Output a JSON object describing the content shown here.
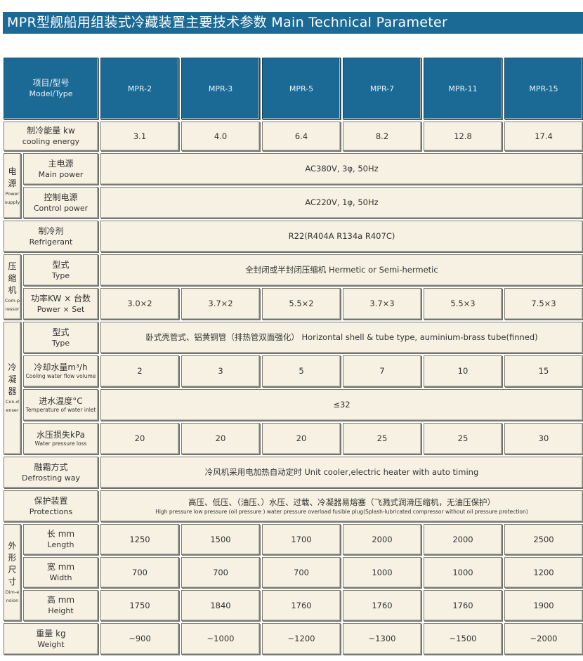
{
  "title": "MPR型舰船用组装式冷藏装置主要技术参数   Main Technical Parameter",
  "header": {
    "cn": "项目/型号",
    "en": "Model/Type",
    "models": [
      "MPR-2",
      "MPR-3",
      "MPR-5",
      "MPR-7",
      "MPR-11",
      "MPR-15"
    ]
  },
  "colors": {
    "header_blue": "#1b6a96",
    "cell_cream": "#f6f1e2"
  },
  "groups": [
    {
      "cn": "电源",
      "en": "Power supply"
    },
    {
      "cn": "压缩机",
      "en": "Com-pressor"
    },
    {
      "cn": "冷凝器",
      "en": "Con-denser"
    },
    {
      "cn": "外形尺寸",
      "en": "Dim-ension"
    }
  ],
  "rows": [
    {
      "cn": "制冷能量 kw",
      "en": "cooling energy",
      "values": [
        "3.1",
        "4.0",
        "6.4",
        "8.2",
        "12.8",
        "17.4"
      ]
    },
    {
      "group": 0,
      "cn": "主电源",
      "en": "Main power",
      "span": "AC380V, 3φ, 50Hz"
    },
    {
      "group": 0,
      "cn": "控制电源",
      "en": "Control power",
      "span": "AC220V, 1φ, 50Hz"
    },
    {
      "cn": "制冷剂",
      "en": "Refrigerant",
      "span": "R22(R404A R134a R407C)"
    },
    {
      "group": 1,
      "cn": "型式",
      "en": "Type",
      "span": "全封闭或半封闭压缩机   Hermetic or Semi-hermetic"
    },
    {
      "group": 1,
      "cn": "功率KW × 台数",
      "en": "Power × Set",
      "values": [
        "3.0×2",
        "3.7×2",
        "5.5×2",
        "3.7×3",
        "5.5×3",
        "7.5×3"
      ]
    },
    {
      "group": 2,
      "cn": "型式",
      "en": "Type",
      "span": "卧式壳管式、铝黄铜管（排热管双面强化）  Horizontal shell & tube type, auminium-brass tube(finned)"
    },
    {
      "group": 2,
      "cn": "冷却水量m³/h",
      "en": "Cooling water flow volume",
      "tiny": true,
      "values": [
        "2",
        "3",
        "5",
        "7",
        "10",
        "15"
      ]
    },
    {
      "group": 2,
      "cn": "进水温度°C",
      "en": "Temperature of water inlet",
      "tiny": true,
      "span": "≤32"
    },
    {
      "group": 2,
      "cn": "水压损失kPa",
      "en": "Water pressure loss",
      "tiny": true,
      "values": [
        "20",
        "20",
        "20",
        "25",
        "25",
        "30"
      ]
    },
    {
      "cn": "融霜方式",
      "en": "Defrosting way",
      "span": "冷风机采用电加热自动定时  Unit cooler,electric heater with auto timing"
    },
    {
      "cn": "保护装置",
      "en": "Protections",
      "span": "高压、低压、（油压、）水压、过载、冷凝器易熔塞（飞溅式润滑压缩机，无油压保护）",
      "span_en": "High pressure  low pressure  (oil pressure )  water pressure  overload  fusible plug(Splash-lubricated compressor without oil pressure protection)"
    },
    {
      "group": 3,
      "cn": "长 mm",
      "en": "Length",
      "values": [
        "1250",
        "1500",
        "1700",
        "2000",
        "2000",
        "2500"
      ]
    },
    {
      "group": 3,
      "cn": "宽 mm",
      "en": "Width",
      "values": [
        "700",
        "700",
        "700",
        "1000",
        "1000",
        "1200"
      ]
    },
    {
      "group": 3,
      "cn": "高 mm",
      "en": "Height",
      "values": [
        "1750",
        "1840",
        "1760",
        "1760",
        "1760",
        "1900"
      ]
    },
    {
      "cn": "重量 kg",
      "en": "Weight",
      "values": [
        "~900",
        "~1000",
        "~1200",
        "~1300",
        "~1500",
        "~2000"
      ]
    }
  ]
}
